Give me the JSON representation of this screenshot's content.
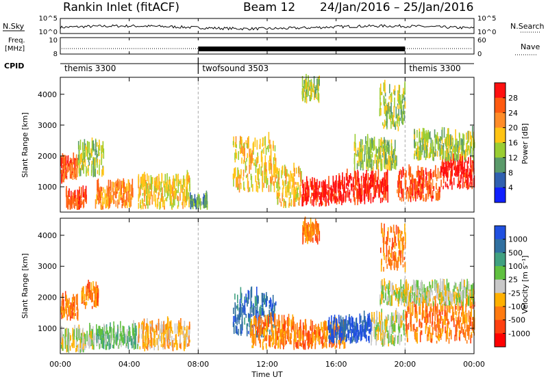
{
  "header": {
    "title": "Rankin Inlet (fitACF)",
    "beam": "Beam 12",
    "dates": "24/Jan/2016 – 25/Jan/2016"
  },
  "labels": {
    "nsky": "N.Sky",
    "nsearch": "N.Search",
    "freq_line1": "Freq.",
    "freq_line2": "[MHz]",
    "nave": "Nave",
    "cpid": "CPID",
    "nsky_tick_top": "10^5",
    "nsky_tick_bottom": "10^0",
    "freq_tick_top": "10",
    "freq_tick_bottom": "8",
    "nave_tick_top": "60",
    "nave_tick_bottom": "0"
  },
  "cpid_segments": [
    {
      "label": "themis 3300",
      "start": 0,
      "end": 8
    },
    {
      "label": "twofsound 3503",
      "start": 8,
      "end": 20
    },
    {
      "label": "themis 3300",
      "start": 20,
      "end": 24
    }
  ],
  "xaxis": {
    "label": "Time UT",
    "ticks": [
      "00:00",
      "04:00",
      "08:00",
      "12:00",
      "16:00",
      "20:00",
      "00:00"
    ],
    "tick_hours": [
      0,
      4,
      8,
      12,
      16,
      20,
      24
    ],
    "range": [
      0,
      24
    ]
  },
  "colorbars": {
    "power": {
      "label": "Power [dB]",
      "ticks": [
        "28",
        "24",
        "20",
        "16",
        "12",
        "8",
        "4"
      ],
      "colors": [
        "#ff1010",
        "#ff5a10",
        "#ff8c28",
        "#ffc414",
        "#9acd32",
        "#5a9a6a",
        "#3060b0",
        "#1020ff"
      ]
    },
    "velocity": {
      "label": "Velocity [m s⁻¹]",
      "ticks": [
        "1000",
        "500",
        "100",
        "25",
        "-25",
        "-100",
        "-500",
        "-1000"
      ],
      "colors": [
        "#2050e0",
        "#3070a0",
        "#40a080",
        "#60c040",
        "#c8c8c8",
        "#ffb000",
        "#ff7a10",
        "#ff4010",
        "#ff0000"
      ]
    }
  },
  "chart_data": [
    {
      "type": "heatmap",
      "title": "",
      "ylabel": "Slant Range [km]",
      "xlabel": "",
      "xlim": [
        0,
        24
      ],
      "ylim": [
        180,
        4550
      ],
      "yticks": [
        1000,
        2000,
        3000,
        4000
      ],
      "quantity": "Power [dB]",
      "regions": [
        {
          "t0": 0.0,
          "t1": 1.0,
          "r0": 1100,
          "r1": 1800,
          "level": 6
        },
        {
          "t0": 0.3,
          "t1": 1.5,
          "r0": 250,
          "r1": 700,
          "level": 6
        },
        {
          "t0": 1.0,
          "t1": 2.5,
          "r0": 1300,
          "r1": 2300,
          "level": 3
        },
        {
          "t0": 2.0,
          "t1": 3.0,
          "r0": 250,
          "r1": 900,
          "level": 5
        },
        {
          "t0": 3.0,
          "t1": 4.2,
          "r0": 300,
          "r1": 1000,
          "level": 5
        },
        {
          "t0": 4.5,
          "t1": 7.5,
          "r0": 250,
          "r1": 1200,
          "level": 4
        },
        {
          "t0": 7.5,
          "t1": 8.5,
          "r0": 250,
          "r1": 500,
          "level": 2
        },
        {
          "t0": 10.0,
          "t1": 12.5,
          "r0": 800,
          "r1": 2400,
          "level": 4
        },
        {
          "t0": 12.5,
          "t1": 14.0,
          "r0": 300,
          "r1": 1500,
          "level": 4
        },
        {
          "t0": 14.0,
          "t1": 16.0,
          "r0": 350,
          "r1": 1000,
          "level": 7
        },
        {
          "t0": 16.0,
          "t1": 19.0,
          "r0": 400,
          "r1": 1300,
          "level": 7
        },
        {
          "t0": 17.0,
          "t1": 19.5,
          "r0": 1500,
          "r1": 2400,
          "level": 3
        },
        {
          "t0": 19.5,
          "t1": 22.0,
          "r0": 500,
          "r1": 1400,
          "level": 6
        },
        {
          "t0": 22.0,
          "t1": 24.0,
          "r0": 900,
          "r1": 1800,
          "level": 7
        },
        {
          "t0": 20.5,
          "t1": 24.0,
          "r0": 1800,
          "r1": 2600,
          "level": 3
        },
        {
          "t0": 14.0,
          "t1": 15.0,
          "r0": 3700,
          "r1": 4300,
          "level": 3
        },
        {
          "t0": 18.5,
          "t1": 20.0,
          "r0": 2800,
          "r1": 4100,
          "level": 3
        }
      ]
    },
    {
      "type": "heatmap",
      "title": "",
      "ylabel": "Slant Range [km]",
      "xlabel": "Time UT",
      "xlim": [
        0,
        24
      ],
      "ylim": [
        180,
        4550
      ],
      "yticks": [
        1000,
        2000,
        3000,
        4000
      ],
      "quantity": "Velocity [m s^-1]",
      "regions": [
        {
          "t0": 0.0,
          "t1": 1.0,
          "r0": 1200,
          "r1": 1900,
          "level": 6
        },
        {
          "t0": 0.0,
          "t1": 2.0,
          "r0": 200,
          "r1": 800,
          "level": 4
        },
        {
          "t0": 1.2,
          "t1": 2.2,
          "r0": 1600,
          "r1": 2300,
          "level": 6
        },
        {
          "t0": 2.0,
          "t1": 4.5,
          "r0": 300,
          "r1": 900,
          "level": 3
        },
        {
          "t0": 4.5,
          "t1": 7.5,
          "r0": 250,
          "r1": 1000,
          "level": 5
        },
        {
          "t0": 10.0,
          "t1": 12.5,
          "r0": 700,
          "r1": 2000,
          "level": 1
        },
        {
          "t0": 11.0,
          "t1": 13.5,
          "r0": 300,
          "r1": 1200,
          "level": 6
        },
        {
          "t0": 13.5,
          "t1": 16.5,
          "r0": 300,
          "r1": 1000,
          "level": 6
        },
        {
          "t0": 15.5,
          "t1": 18.0,
          "r0": 500,
          "r1": 1200,
          "level": 0
        },
        {
          "t0": 18.0,
          "t1": 20.0,
          "r0": 400,
          "r1": 1300,
          "level": 4
        },
        {
          "t0": 20.0,
          "t1": 24.0,
          "r0": 500,
          "r1": 1700,
          "level": 6
        },
        {
          "t0": 18.5,
          "t1": 24.0,
          "r0": 1700,
          "r1": 2300,
          "level": 4
        },
        {
          "t0": 14.0,
          "t1": 15.0,
          "r0": 3700,
          "r1": 4300,
          "level": 6
        },
        {
          "t0": 18.5,
          "t1": 20.0,
          "r0": 2800,
          "r1": 4100,
          "level": 6
        }
      ]
    }
  ]
}
